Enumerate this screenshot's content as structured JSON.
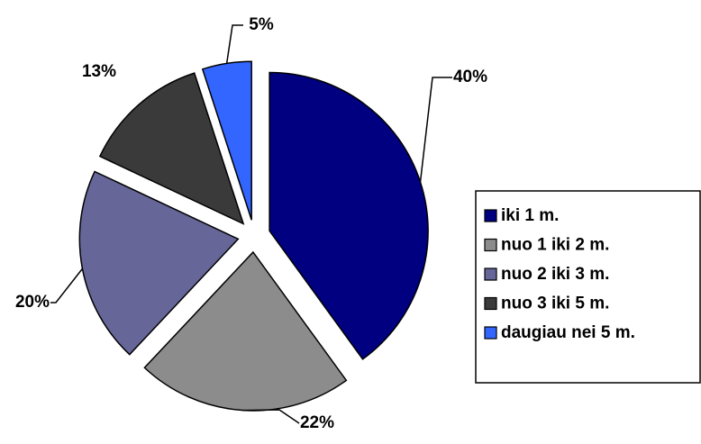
{
  "chart_data": {
    "type": "pie",
    "categories": [
      "iki 1 m.",
      "nuo 1 iki 2 m.",
      "nuo 2 iki 3 m.",
      "nuo 3 iki 5 m.",
      "daugiau nei 5 m."
    ],
    "values": [
      40,
      22,
      20,
      13,
      5
    ],
    "value_labels": [
      "40%",
      "22%",
      "20%",
      "13%",
      "5%"
    ],
    "colors": [
      "#000080",
      "#8c8c8c",
      "#666699",
      "#3a3a3a",
      "#3366ff"
    ],
    "legend": "right"
  }
}
